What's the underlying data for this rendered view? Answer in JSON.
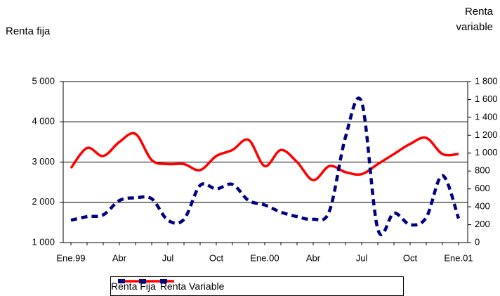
{
  "chart_data": {
    "type": "line",
    "y_label": "Renta fija",
    "y2_label": "Renta variable",
    "categories": [
      "Ene.99",
      null,
      null,
      "Abr",
      null,
      null,
      "Jul",
      null,
      null,
      "Oct",
      null,
      null,
      "Ene.00",
      null,
      null,
      "Abr",
      null,
      null,
      "Jul",
      null,
      null,
      "Oct",
      null,
      null,
      "Ene.01"
    ],
    "ylim": [
      1000,
      5000
    ],
    "yticks": [
      {
        "value": 1000,
        "label": "1 000"
      },
      {
        "value": 2000,
        "label": "2 000"
      },
      {
        "value": 3000,
        "label": "3 000"
      },
      {
        "value": 4000,
        "label": "4 000"
      },
      {
        "value": 5000,
        "label": "5 000"
      }
    ],
    "y2lim": [
      0,
      1800
    ],
    "y2ticks": [
      0,
      200,
      400,
      600,
      800,
      {
        "value": 1000,
        "label": "1 000"
      },
      {
        "value": 1200,
        "label": "1 200"
      },
      {
        "value": 1400,
        "label": "1 400"
      },
      {
        "value": 1600,
        "label": "1 600"
      },
      {
        "value": 1800,
        "label": "1 800"
      }
    ],
    "grid": true,
    "series": [
      {
        "name": "Renta Fija",
        "color": "#ff0000",
        "style": "solid",
        "values": [
          2850,
          3350,
          3150,
          3500,
          3700,
          3050,
          2950,
          2950,
          2800,
          3150,
          3300,
          3550,
          2900,
          3300,
          3000,
          2550,
          2900,
          2750,
          2700,
          2950,
          3200,
          3450,
          3600,
          3200,
          3200
        ]
      },
      {
        "name": "Renta Variable",
        "color": "#000080",
        "style": "dashed",
        "axis": "y2",
        "values": [
          250,
          290,
          310,
          470,
          500,
          490,
          250,
          260,
          640,
          600,
          650,
          470,
          420,
          340,
          290,
          260,
          350,
          1180,
          1570,
          150,
          330,
          200,
          280,
          750,
          270
        ]
      }
    ]
  }
}
